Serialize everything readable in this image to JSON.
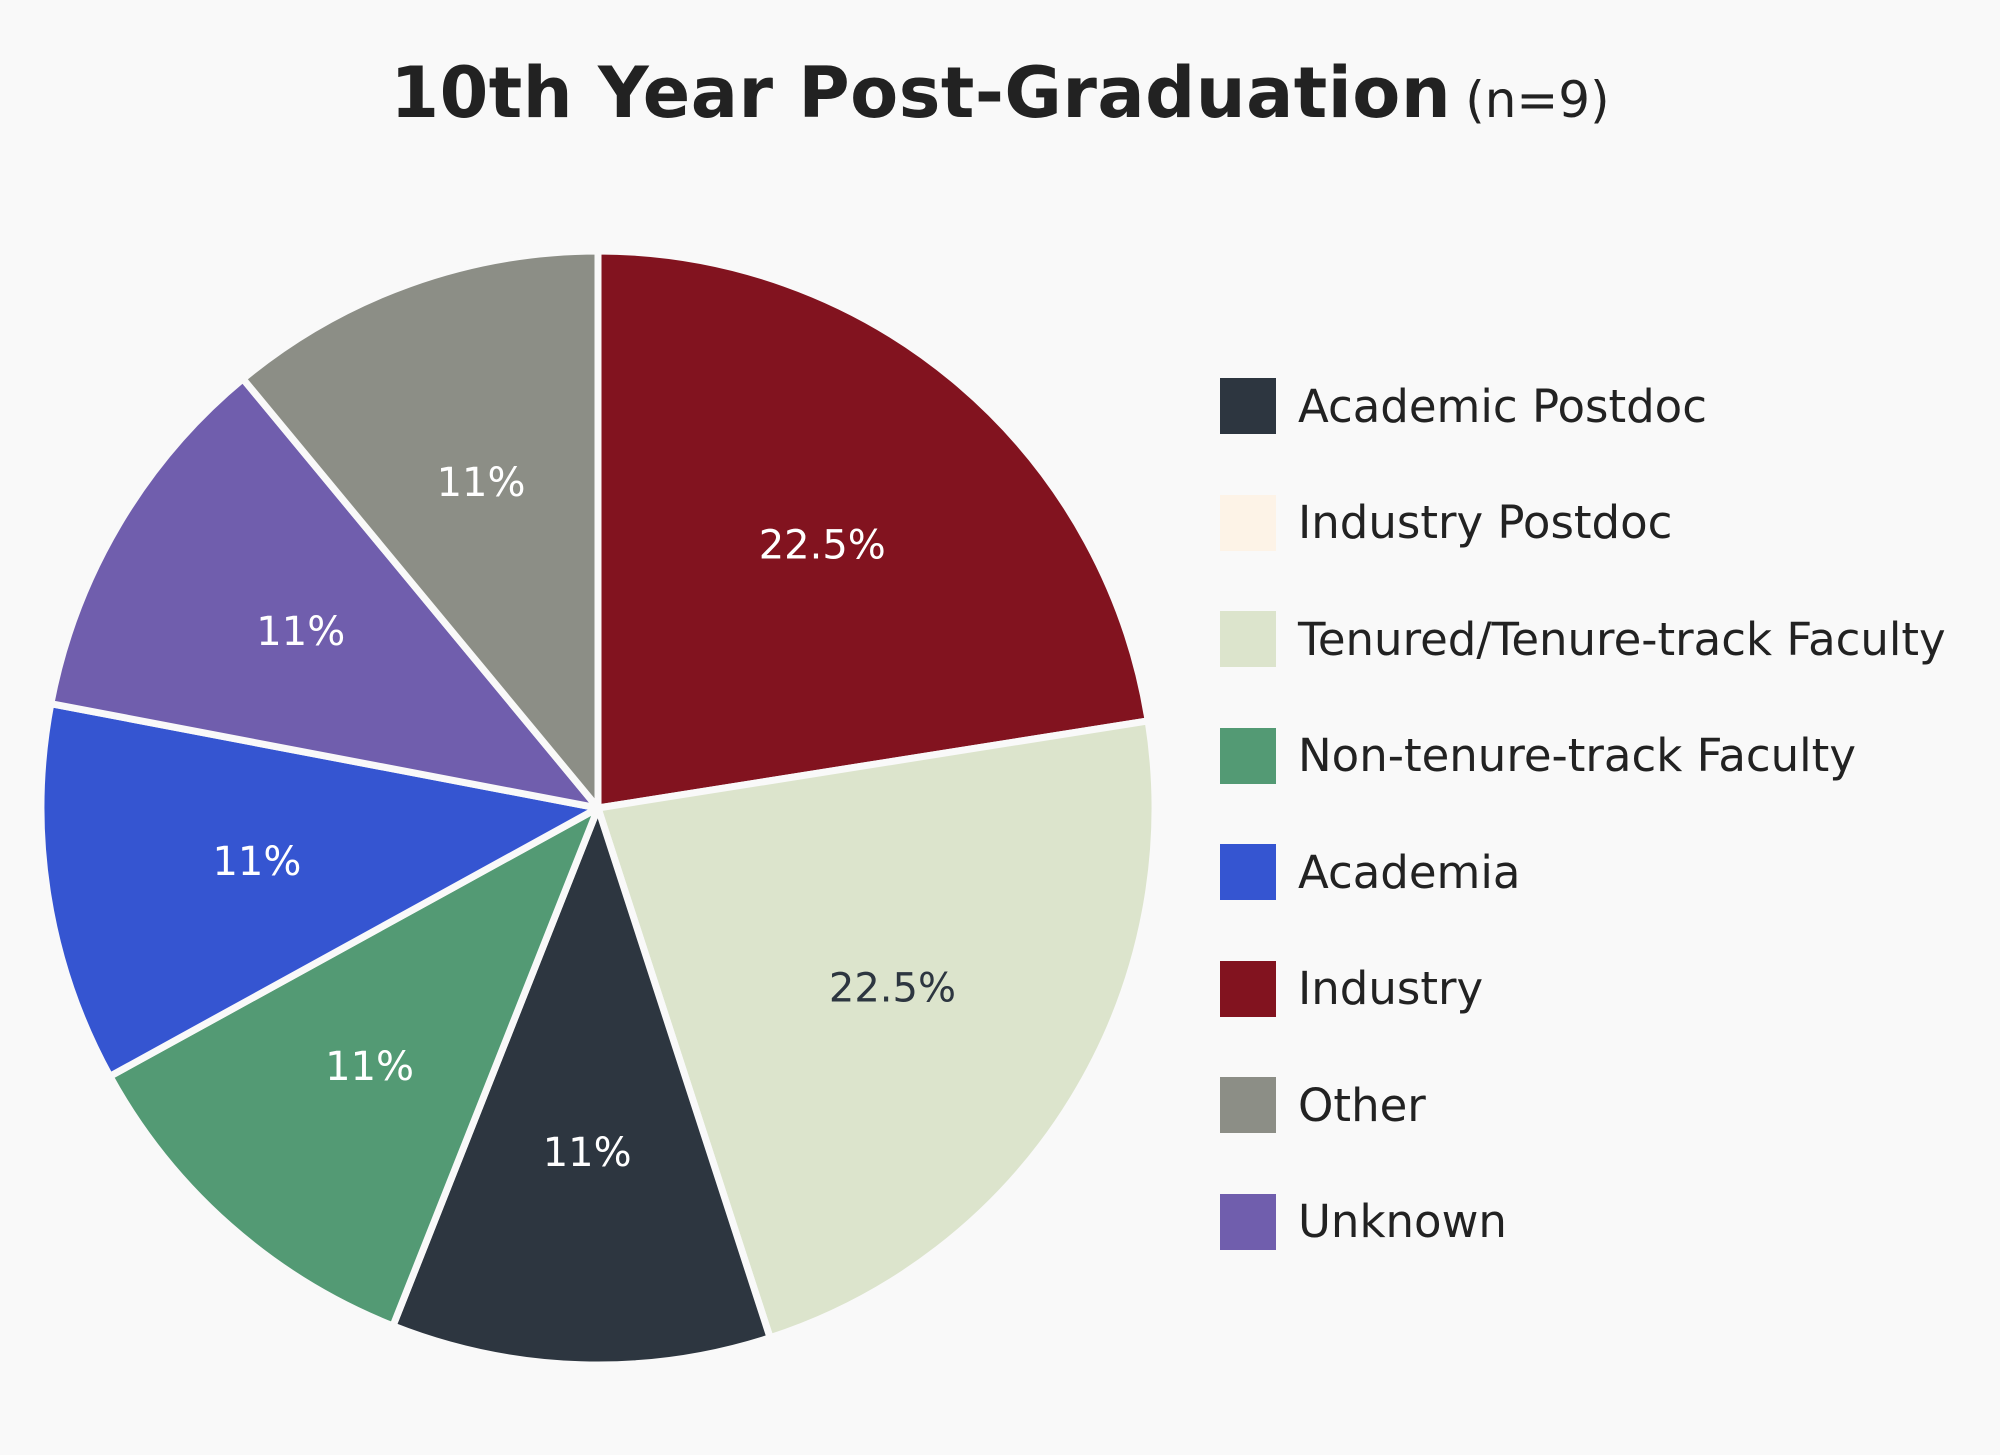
{
  "chart_data": {
    "type": "pie",
    "title": "10th Year Post-Graduation",
    "subtitle": "(n=9)",
    "categories": [
      "Academic Postdoc",
      "Industry Postdoc",
      "Tenured/Tenure-track Faculty",
      "Non-tenure-track Faculty",
      "Academia",
      "Industry",
      "Other",
      "Unknown"
    ],
    "colors": [
      "#2d3640",
      "#fdf3e7",
      "#dce4cc",
      "#539a74",
      "#3555d1",
      "#82131f",
      "#8c8e86",
      "#705ead"
    ],
    "slices": [
      {
        "category": "Industry",
        "value": 22.5,
        "label": "22.5%",
        "color": "#82131f",
        "label_color": "#ffffff"
      },
      {
        "category": "Tenured/Tenure-track Faculty",
        "value": 22.5,
        "label": "22.5%",
        "color": "#dce4cc",
        "label_color": "#2d3640"
      },
      {
        "category": "Academic Postdoc",
        "value": 11,
        "label": "11%",
        "color": "#2d3640",
        "label_color": "#ffffff"
      },
      {
        "category": "Non-tenure-track Faculty",
        "value": 11,
        "label": "11%",
        "color": "#539a74",
        "label_color": "#ffffff"
      },
      {
        "category": "Academia",
        "value": 11,
        "label": "11%",
        "color": "#3555d1",
        "label_color": "#ffffff"
      },
      {
        "category": "Unknown",
        "value": 11,
        "label": "11%",
        "color": "#705ead",
        "label_color": "#ffffff"
      },
      {
        "category": "Other",
        "value": 11,
        "label": "11%",
        "color": "#8c8e86",
        "label_color": "#ffffff"
      }
    ],
    "legend_position": "right"
  }
}
